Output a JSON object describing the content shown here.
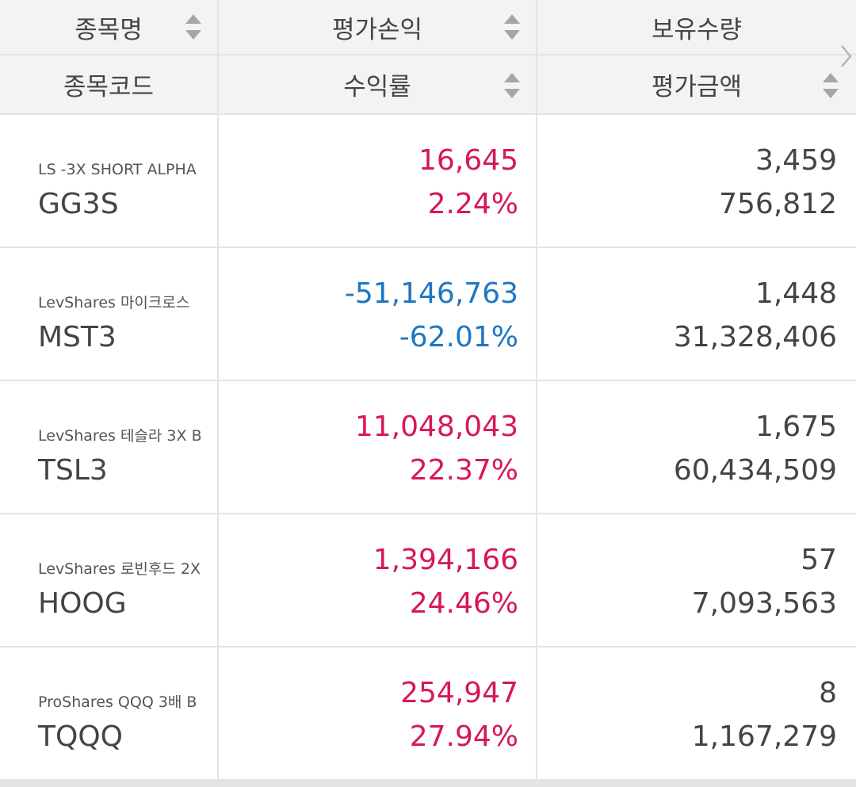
{
  "header": {
    "row1": [
      "종목명",
      "평가손익",
      "보유수량"
    ],
    "row2": [
      "종목코드",
      "수익률",
      "평가금액"
    ]
  },
  "rows": [
    {
      "name": "LS -3X SHORT ALPHA",
      "code": "GG3S",
      "pnl": "16,645",
      "rate": "2.24%",
      "qty": "3,459",
      "amount": "756,812"
    },
    {
      "name": "LevShares 마이크로스",
      "code": "MST3",
      "pnl": "-51,146,763",
      "rate": "-62.01%",
      "qty": "1,448",
      "amount": "31,328,406"
    },
    {
      "name": "LevShares 테슬라 3X B",
      "code": "TSL3",
      "pnl": "11,048,043",
      "rate": "22.37%",
      "qty": "1,675",
      "amount": "60,434,509"
    },
    {
      "name": "LevShares 로빈후드 2X",
      "code": "HOOG",
      "pnl": "1,394,166",
      "rate": "24.46%",
      "qty": "57",
      "amount": "7,093,563"
    },
    {
      "name": "ProShares QQQ 3배 B",
      "code": "TQQQ",
      "pnl": "254,947",
      "rate": "27.94%",
      "qty": "8",
      "amount": "1,167,279"
    }
  ]
}
